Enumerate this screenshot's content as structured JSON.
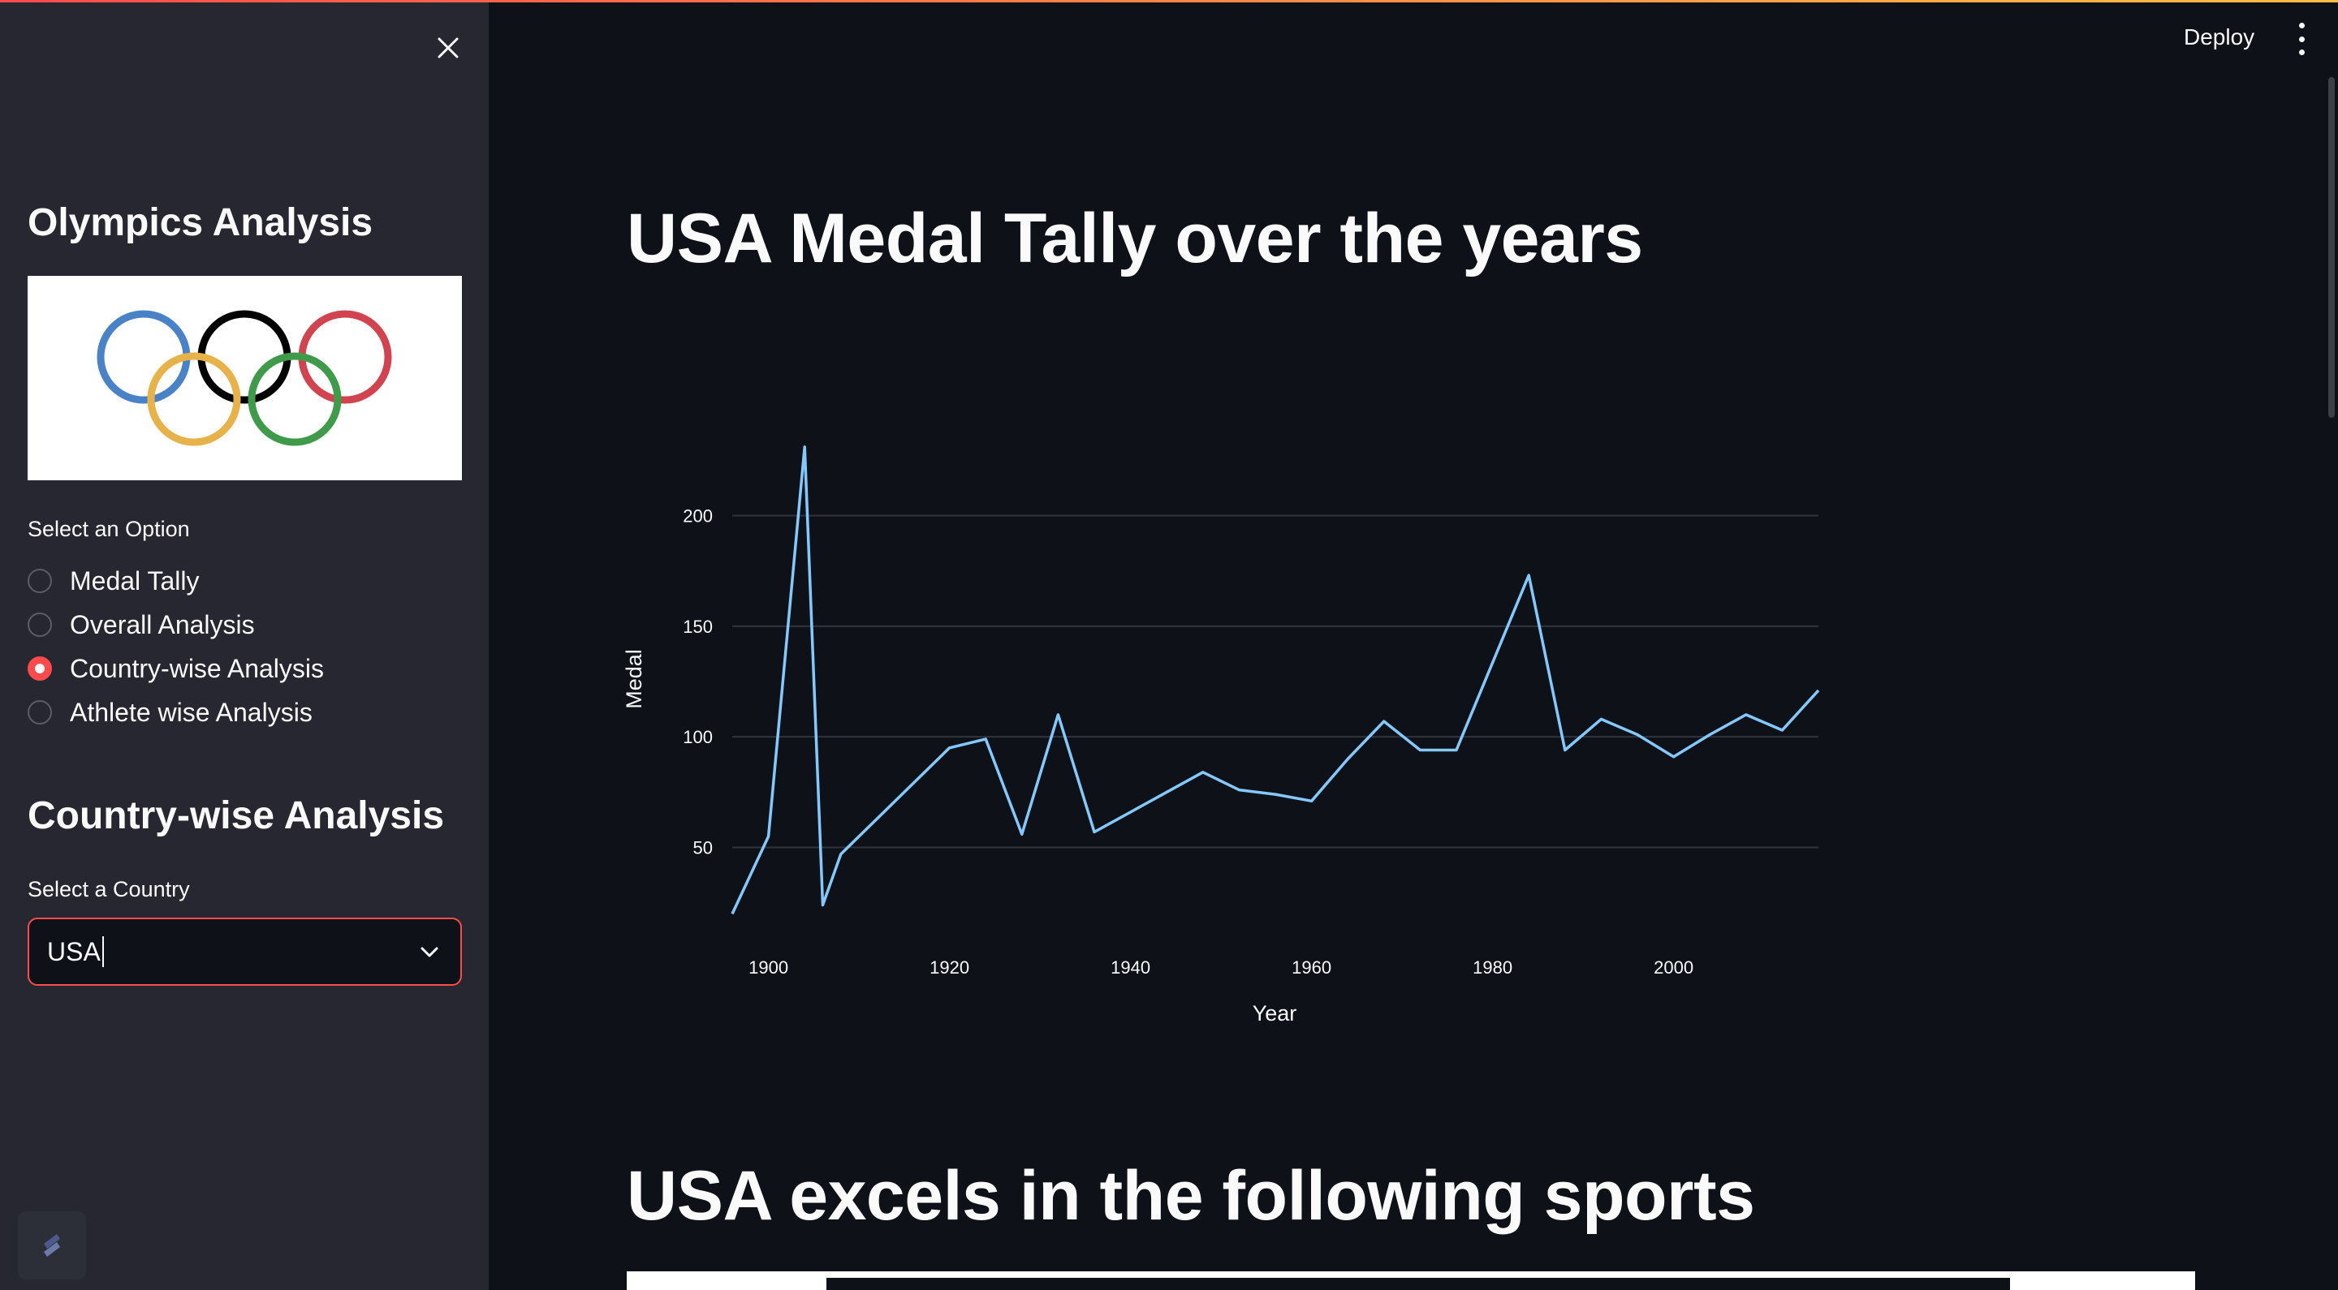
{
  "sidebar": {
    "title": "Olympics Analysis",
    "select_option_label": "Select an Option",
    "options": [
      {
        "label": "Medal Tally",
        "selected": false
      },
      {
        "label": "Overall Analysis",
        "selected": false
      },
      {
        "label": "Country-wise Analysis",
        "selected": true
      },
      {
        "label": "Athlete wise Analysis",
        "selected": false
      }
    ],
    "section_title": "Country-wise Analysis",
    "country_label": "Select a Country",
    "country_value": "USA"
  },
  "header": {
    "deploy_label": "Deploy"
  },
  "main": {
    "chart_title": "USA Medal Tally over the years",
    "sports_title": "USA excels in the following sports"
  },
  "colors": {
    "accent": "#ff4b4b",
    "line": "#83c9ff",
    "background": "#0e1117",
    "sidebar": "#262730"
  },
  "chart_data": {
    "type": "line",
    "title": "",
    "xlabel": "Year",
    "ylabel": "Medal",
    "xlim": [
      1896,
      2016
    ],
    "ylim": [
      15,
      235
    ],
    "xticks": [
      1900,
      1920,
      1940,
      1960,
      1980,
      2000
    ],
    "yticks": [
      50,
      100,
      150,
      200
    ],
    "grid": true,
    "series": [
      {
        "x": [
          1896,
          1900,
          1904,
          1906,
          1908,
          1912,
          1920,
          1924,
          1928,
          1932,
          1936,
          1948,
          1952,
          1956,
          1960,
          1964,
          1968,
          1972,
          1976,
          1984,
          1988,
          1992,
          1996,
          2000,
          2004,
          2008,
          2012,
          2016
        ],
        "y": [
          20,
          55,
          231,
          24,
          47,
          63,
          95,
          99,
          56,
          110,
          57,
          84,
          76,
          74,
          71,
          90,
          107,
          94,
          94,
          173,
          94,
          108,
          101,
          91,
          101,
          110,
          103,
          121
        ]
      }
    ]
  }
}
